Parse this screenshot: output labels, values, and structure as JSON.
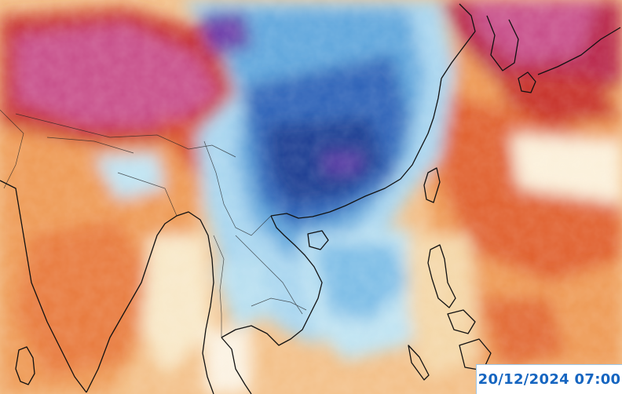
{
  "timestamp": "20/12/2024 07:00",
  "colors": {
    "ocean_light": "#f7f2df",
    "warm_light": "#f6c98e",
    "warm_mid": "#ee9a55",
    "warm_strong": "#e0602e",
    "hot": "#c7302a",
    "extreme_hot": "#a8204a",
    "extreme_pink": "#c8508a",
    "cold_light": "#bfe3f2",
    "cold_mid": "#6fb3e2",
    "cold_strong": "#2e63b8",
    "cold_deep": "#1a3c92",
    "cold_extreme": "#6a3aa8",
    "coastline": "#111111",
    "timestamp_text": "#1565c0"
  },
  "icons": {
    "map": "temperature-anomaly-map"
  }
}
